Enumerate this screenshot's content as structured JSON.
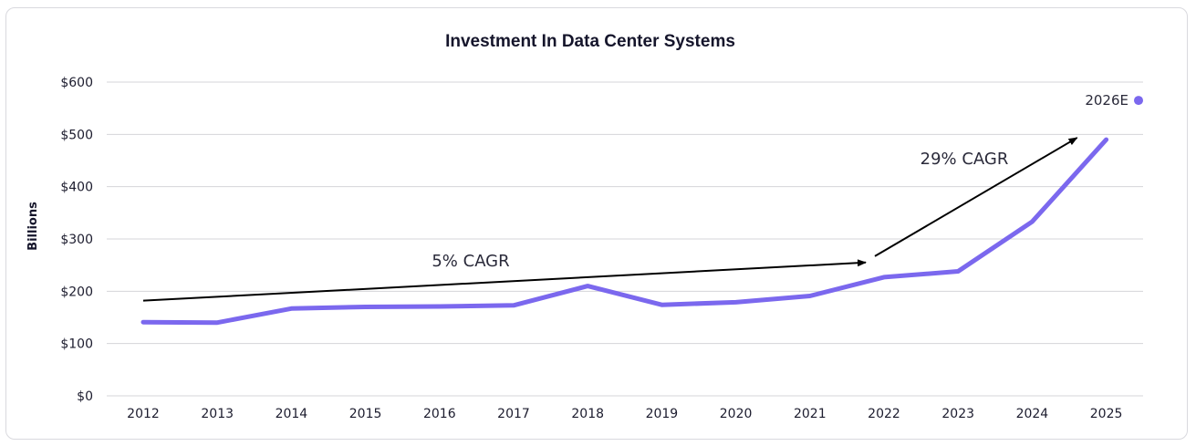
{
  "chart_data": {
    "type": "line",
    "title": "Investment In Data Center Systems",
    "xlabel": "",
    "ylabel": "Billions",
    "categories": [
      "2012",
      "2013",
      "2014",
      "2015",
      "2016",
      "2017",
      "2018",
      "2019",
      "2020",
      "2021",
      "2022",
      "2023",
      "2024",
      "2025"
    ],
    "y_ticks": [
      "$0",
      "$100",
      "$200",
      "$300",
      "$400",
      "$500",
      "$600"
    ],
    "ylim": [
      0,
      600
    ],
    "grid": true,
    "series": [
      {
        "values": [
          141,
          140,
          167,
          170,
          171,
          173,
          210,
          174,
          179,
          191,
          227,
          238,
          333,
          490
        ],
        "color": "#7b68ee"
      }
    ],
    "extra_points": [
      {
        "label": "2026E",
        "value": 565,
        "color": "#7b68ee"
      }
    ],
    "annotations": [
      {
        "text": "5% CAGR",
        "from": {
          "x": "2012",
          "y": 182
        },
        "to": {
          "x": "2022",
          "y": 255
        }
      },
      {
        "text": "29% CAGR",
        "from": {
          "x": "2022",
          "y": 267
        },
        "to": {
          "x": "2025",
          "y": 490
        }
      }
    ]
  }
}
